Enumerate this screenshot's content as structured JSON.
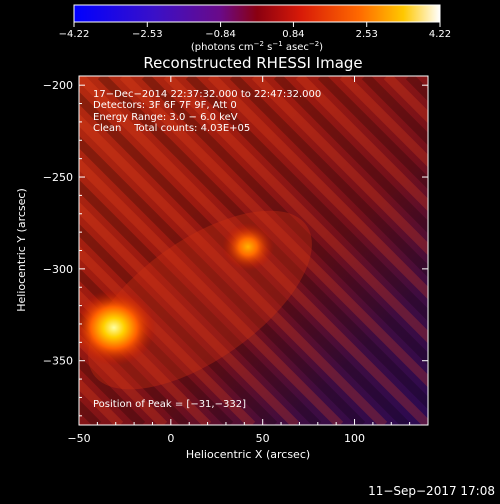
{
  "chart_data": {
    "type": "heatmap",
    "title": "Reconstructed RHESSI Image",
    "xlabel": "Heliocentric X (arcsec)",
    "ylabel": "Heliocentric Y (arcsec)",
    "xlim": [
      -50,
      140
    ],
    "ylim": [
      -385,
      -195
    ],
    "x_ticks": [
      -50,
      0,
      50,
      100
    ],
    "y_ticks": [
      -200,
      -250,
      -300,
      -350
    ],
    "x_tick_labels": [
      "−50",
      "0",
      "50",
      "100"
    ],
    "y_tick_labels": [
      "−200",
      "−250",
      "−300",
      "−350"
    ],
    "colorbar": {
      "range": [
        -4.22,
        4.22
      ],
      "ticks": [
        -4.22,
        -2.53,
        -0.84,
        0.84,
        2.53,
        4.22
      ],
      "tick_labels": [
        "−4.22",
        "−2.53",
        "−0.84",
        "0.84",
        "2.53",
        "4.22"
      ],
      "unit_label": "(photons cm",
      "unit_exp1": "−2",
      "unit_mid": " s",
      "unit_exp2": "−1",
      "unit_end": " asec",
      "unit_exp3": "−2",
      "unit_close": ")"
    },
    "annotations": [
      "17−Dec−2014 22:37:32.000 to 22:47:32.000",
      "Detectors: 3F 6F 7F 9F, Att 0",
      "Energy Range: 3.0 − 6.0 keV",
      "Clean    Total counts: 4.03E+05"
    ],
    "peak_label": "Position of Peak = [−31,−332]",
    "sources": [
      {
        "x": -31,
        "y": -332,
        "intensity": 4.22
      },
      {
        "x": 42,
        "y": -288,
        "intensity": 2.6
      }
    ]
  },
  "timestamp": "11−Sep−2017 17:08"
}
